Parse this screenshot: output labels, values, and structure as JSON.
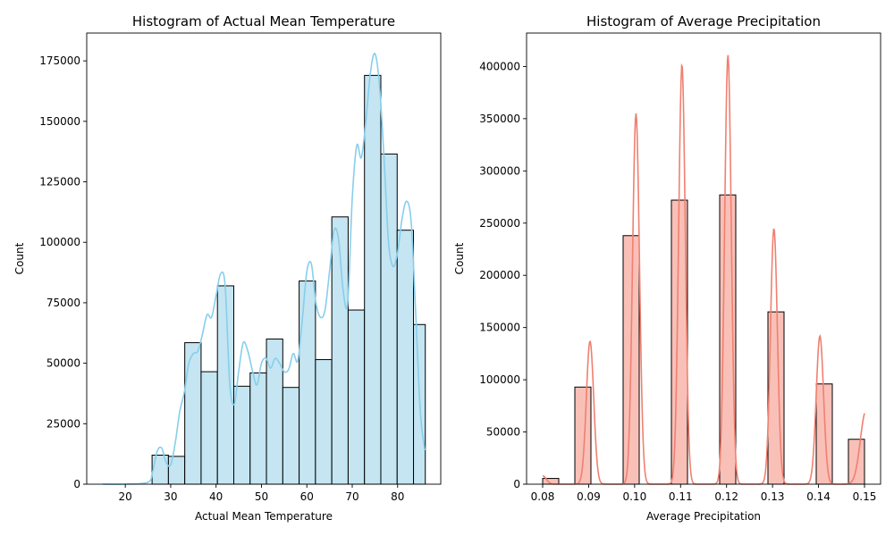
{
  "chart_data": [
    {
      "type": "bar",
      "title": "Histogram of Actual Mean Temperature",
      "xlabel": "Actual Mean Temperature",
      "ylabel": "Count",
      "xlim": [
        11.5,
        89.5
      ],
      "ylim": [
        0,
        186500
      ],
      "xticks": [
        20,
        30,
        40,
        50,
        60,
        70,
        80
      ],
      "yticks": [
        0,
        25000,
        50000,
        75000,
        100000,
        125000,
        150000,
        175000
      ],
      "bin_edges": [
        25.9,
        29.5,
        33.1,
        36.7,
        40.3,
        43.9,
        47.5,
        51.1,
        54.7,
        58.3,
        61.9,
        65.5,
        69.1,
        72.7,
        76.3,
        79.9,
        83.5,
        86.1
      ],
      "values": [
        12000,
        11500,
        58500,
        46500,
        82000,
        40500,
        46000,
        60000,
        40000,
        84000,
        51500,
        110500,
        72000,
        169000,
        136500,
        105000,
        66000
      ],
      "kde": {
        "x": [
          15,
          20,
          25,
          26,
          27,
          28,
          29,
          30,
          31,
          32,
          33,
          34,
          35,
          36,
          37,
          38,
          39,
          40,
          41,
          42,
          43,
          44,
          45,
          46,
          47,
          48,
          49,
          50,
          51,
          52,
          53,
          54,
          55,
          56,
          57,
          58,
          59,
          60,
          61,
          62,
          63,
          64,
          65,
          66,
          67,
          68,
          69,
          70,
          71,
          72,
          73,
          74,
          75,
          76,
          77,
          78,
          79,
          80,
          81,
          82,
          83,
          84,
          85,
          86
        ],
        "y": [
          0,
          0,
          800,
          5000,
          13500,
          15000,
          9000,
          8000,
          17000,
          30000,
          38000,
          50000,
          54000,
          55000,
          62000,
          70000,
          69000,
          78000,
          87000,
          82000,
          42000,
          33000,
          47000,
          58500,
          55000,
          47000,
          41000,
          50000,
          52000,
          48000,
          52000,
          50000,
          46500,
          47500,
          54000,
          51000,
          68000,
          88000,
          91000,
          75000,
          69000,
          72000,
          88000,
          105000,
          101000,
          80000,
          75000,
          118000,
          140000,
          135000,
          150000,
          170000,
          178000,
          165000,
          135000,
          100000,
          90000,
          96000,
          110000,
          117000,
          108000,
          70000,
          30000,
          14000
        ]
      },
      "color": "#87ceeb",
      "bar_fill": "#c4e5f1"
    },
    {
      "type": "bar",
      "title": "Histogram of Average Precipitation",
      "xlabel": "Average Precipitation",
      "ylabel": "Count",
      "xlim": [
        0.0765,
        0.1535
      ],
      "ylim": [
        0,
        432000
      ],
      "xticks": [
        0.08,
        0.09,
        0.1,
        0.11,
        0.12,
        0.13,
        0.14,
        0.15
      ],
      "xtick_labels": [
        "0.08",
        "0.09",
        "0.10",
        "0.11",
        "0.12",
        "0.13",
        "0.14",
        "0.15"
      ],
      "yticks": [
        0,
        50000,
        100000,
        150000,
        200000,
        250000,
        300000,
        350000,
        400000
      ],
      "bins": [
        {
          "x0": 0.08,
          "x1": 0.0835,
          "value": 5500
        },
        {
          "x0": 0.087,
          "x1": 0.0905,
          "value": 93000
        },
        {
          "x0": 0.0975,
          "x1": 0.101,
          "value": 238000
        },
        {
          "x0": 0.108,
          "x1": 0.1115,
          "value": 272000
        },
        {
          "x0": 0.1185,
          "x1": 0.122,
          "value": 277000
        },
        {
          "x0": 0.129,
          "x1": 0.1325,
          "value": 165000
        },
        {
          "x0": 0.1395,
          "x1": 0.143,
          "value": 96000
        },
        {
          "x0": 0.1465,
          "x1": 0.15,
          "value": 43000
        }
      ],
      "kde_peaks": [
        {
          "mu": 0.08,
          "peak": 8000,
          "sigma": 0.0008
        },
        {
          "mu": 0.0903,
          "peak": 137000,
          "sigma": 0.0008
        },
        {
          "mu": 0.1003,
          "peak": 355000,
          "sigma": 0.00075
        },
        {
          "mu": 0.1103,
          "peak": 402000,
          "sigma": 0.00072
        },
        {
          "mu": 0.1203,
          "peak": 411000,
          "sigma": 0.00072
        },
        {
          "mu": 0.1303,
          "peak": 245000,
          "sigma": 0.00075
        },
        {
          "mu": 0.1403,
          "peak": 142000,
          "sigma": 0.0008
        },
        {
          "mu": 0.1503,
          "peak": 70000,
          "sigma": 0.0012
        }
      ],
      "color": "#f08070",
      "bar_fill": "#f9c0b8"
    }
  ]
}
